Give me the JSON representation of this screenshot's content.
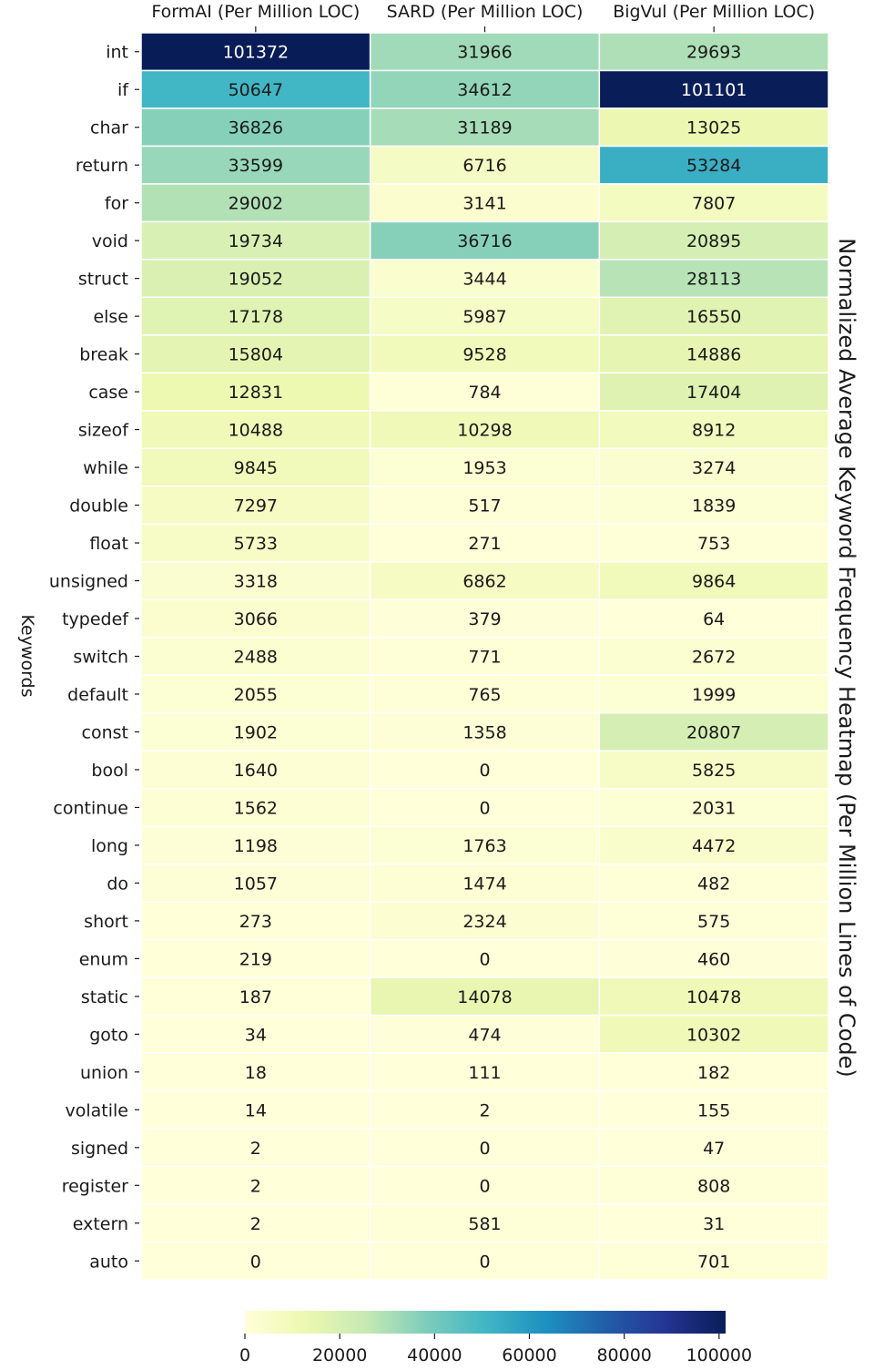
{
  "chart_data": {
    "type": "heatmap",
    "title": "Normalized Average Keyword Frequency Heatmap (Per Million Lines of Code)",
    "ylabel": "Keywords",
    "columns": [
      "FormAI (Per Million LOC)",
      "SARD (Per Million LOC)",
      "BigVul (Per Million LOC)"
    ],
    "rows": [
      "int",
      "if",
      "char",
      "return",
      "for",
      "void",
      "struct",
      "else",
      "break",
      "case",
      "sizeof",
      "while",
      "double",
      "float",
      "unsigned",
      "typedef",
      "switch",
      "default",
      "const",
      "bool",
      "continue",
      "long",
      "do",
      "short",
      "enum",
      "static",
      "goto",
      "union",
      "volatile",
      "signed",
      "register",
      "extern",
      "auto"
    ],
    "values": [
      [
        101372,
        31966,
        29693
      ],
      [
        50647,
        34612,
        101101
      ],
      [
        36826,
        31189,
        13025
      ],
      [
        33599,
        6716,
        53284
      ],
      [
        29002,
        3141,
        7807
      ],
      [
        19734,
        36716,
        20895
      ],
      [
        19052,
        3444,
        28113
      ],
      [
        17178,
        5987,
        16550
      ],
      [
        15804,
        9528,
        14886
      ],
      [
        12831,
        784,
        17404
      ],
      [
        10488,
        10298,
        8912
      ],
      [
        9845,
        1953,
        3274
      ],
      [
        7297,
        517,
        1839
      ],
      [
        5733,
        271,
        753
      ],
      [
        3318,
        6862,
        9864
      ],
      [
        3066,
        379,
        64
      ],
      [
        2488,
        771,
        2672
      ],
      [
        2055,
        765,
        1999
      ],
      [
        1902,
        1358,
        20807
      ],
      [
        1640,
        0,
        5825
      ],
      [
        1562,
        0,
        2031
      ],
      [
        1198,
        1763,
        4472
      ],
      [
        1057,
        1474,
        482
      ],
      [
        273,
        2324,
        575
      ],
      [
        219,
        0,
        460
      ],
      [
        187,
        14078,
        10478
      ],
      [
        34,
        474,
        10302
      ],
      [
        18,
        111,
        182
      ],
      [
        14,
        2,
        155
      ],
      [
        2,
        0,
        47
      ],
      [
        2,
        0,
        808
      ],
      [
        2,
        581,
        31
      ],
      [
        0,
        0,
        701
      ]
    ],
    "colorbar": {
      "min": 0,
      "max": 101372,
      "ticks": [
        0,
        20000,
        40000,
        60000,
        80000,
        100000
      ],
      "colormap": "YlGnBu",
      "colors": [
        "#ffffd9",
        "#edf8b1",
        "#c7e9b4",
        "#7fcdbb",
        "#41b6c4",
        "#1d91c0",
        "#225ea8",
        "#253494",
        "#081d58"
      ]
    }
  }
}
